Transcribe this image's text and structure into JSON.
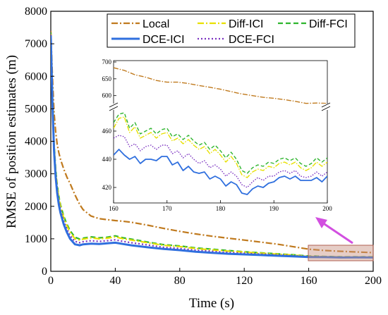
{
  "chart_data": {
    "type": "line",
    "title": "",
    "xlabel": "Time (s)",
    "ylabel": "RMSE of position estimates (m)",
    "xlim": [
      0,
      200
    ],
    "ylim": [
      0,
      8000
    ],
    "x_ticks": [
      "0",
      "40",
      "80",
      "120",
      "160",
      "200"
    ],
    "y_ticks": [
      "0",
      "1000",
      "2000",
      "3000",
      "4000",
      "5000",
      "6000",
      "7000",
      "8000"
    ],
    "legend_position": "top-right",
    "series": [
      {
        "name": "Local",
        "color": "#c07a1e",
        "dash": "dash-dot",
        "x": [
          0,
          1,
          2,
          3,
          4,
          5,
          6,
          8,
          10,
          12,
          15,
          18,
          20,
          25,
          30,
          35,
          40,
          45,
          50,
          60,
          70,
          80,
          90,
          100,
          110,
          120,
          130,
          140,
          150,
          160,
          170,
          180,
          190,
          200
        ],
        "y": [
          7400,
          6000,
          4900,
          4300,
          3900,
          3650,
          3450,
          3150,
          2900,
          2700,
          2350,
          2050,
          1900,
          1700,
          1620,
          1590,
          1560,
          1540,
          1510,
          1420,
          1320,
          1230,
          1150,
          1080,
          1020,
          960,
          900,
          840,
          760,
          680,
          640,
          615,
          595,
          575
        ]
      },
      {
        "name": "Diff-ICI",
        "color": "#e8e000",
        "dash": "dash-dot",
        "x": [
          0,
          1,
          2,
          3,
          4,
          5,
          6,
          8,
          10,
          12,
          15,
          18,
          20,
          25,
          30,
          35,
          40,
          45,
          50,
          60,
          70,
          80,
          90,
          100,
          110,
          120,
          130,
          140,
          150,
          160,
          170,
          180,
          190,
          200
        ],
        "y": [
          7300,
          5400,
          3900,
          3100,
          2600,
          2250,
          2000,
          1650,
          1400,
          1200,
          1000,
          960,
          990,
          1030,
          1000,
          1020,
          1060,
          1000,
          960,
          880,
          800,
          760,
          700,
          660,
          620,
          590,
          560,
          530,
          500,
          460,
          450,
          440,
          440,
          440
        ]
      },
      {
        "name": "Diff-FCI",
        "color": "#2fb52f",
        "dash": "dash",
        "x": [
          0,
          1,
          2,
          3,
          4,
          5,
          6,
          8,
          10,
          12,
          15,
          18,
          20,
          25,
          30,
          35,
          40,
          45,
          50,
          60,
          70,
          80,
          90,
          100,
          110,
          120,
          130,
          140,
          150,
          160,
          170,
          180,
          190,
          200
        ],
        "y": [
          7350,
          5450,
          3950,
          3150,
          2650,
          2300,
          2050,
          1700,
          1450,
          1250,
          1050,
          990,
          1020,
          1060,
          1030,
          1050,
          1090,
          1030,
          990,
          900,
          820,
          780,
          720,
          680,
          640,
          600,
          570,
          540,
          510,
          470,
          455,
          445,
          445,
          445
        ]
      },
      {
        "name": "DCE-ICI",
        "color": "#2f6fde",
        "dash": "solid",
        "x": [
          0,
          1,
          2,
          3,
          4,
          5,
          6,
          8,
          10,
          12,
          15,
          18,
          20,
          25,
          30,
          35,
          40,
          45,
          50,
          60,
          70,
          80,
          90,
          100,
          110,
          120,
          130,
          140,
          150,
          160,
          170,
          180,
          190,
          200
        ],
        "y": [
          7250,
          5200,
          3700,
          2900,
          2400,
          2050,
          1800,
          1450,
          1200,
          1000,
          830,
          800,
          830,
          850,
          840,
          860,
          880,
          840,
          800,
          740,
          690,
          650,
          600,
          570,
          540,
          520,
          500,
          480,
          460,
          440,
          435,
          425,
          428,
          425
        ]
      },
      {
        "name": "DCE-FCI",
        "color": "#7a30c0",
        "dash": "dot",
        "x": [
          0,
          1,
          2,
          3,
          4,
          5,
          6,
          8,
          10,
          12,
          15,
          18,
          20,
          25,
          30,
          35,
          40,
          45,
          50,
          60,
          70,
          80,
          90,
          100,
          110,
          120,
          130,
          140,
          150,
          160,
          170,
          180,
          190,
          200
        ],
        "y": [
          7280,
          5300,
          3800,
          3000,
          2500,
          2150,
          1900,
          1550,
          1300,
          1100,
          920,
          880,
          910,
          940,
          920,
          940,
          970,
          920,
          880,
          810,
          740,
          700,
          650,
          615,
          580,
          555,
          530,
          505,
          480,
          450,
          445,
          432,
          432,
          432
        ]
      }
    ],
    "inset": {
      "xlim": [
        160,
        200
      ],
      "x_ticks": [
        "160",
        "170",
        "180",
        "190",
        "200"
      ],
      "y_ticks_upper": [
        "600",
        "650",
        "700"
      ],
      "y_ticks_lower": [
        "420",
        "440",
        "460"
      ],
      "upper_range": [
        570,
        700
      ],
      "lower_range": [
        410,
        475
      ],
      "series": [
        {
          "name": "Local",
          "x": [
            160,
            162,
            164,
            166,
            168,
            170,
            172,
            174,
            176,
            178,
            180,
            182,
            184,
            186,
            188,
            190,
            192,
            194,
            196,
            198,
            200
          ],
          "y": [
            683,
            675,
            662,
            655,
            645,
            640,
            640,
            636,
            630,
            625,
            619,
            612,
            605,
            600,
            595,
            592,
            588,
            583,
            577,
            578,
            577
          ]
        },
        {
          "name": "Diff-FCI",
          "x": [
            160,
            161,
            162,
            163,
            164,
            165,
            166,
            167,
            168,
            169,
            170,
            171,
            172,
            173,
            174,
            175,
            176,
            177,
            178,
            179,
            180,
            181,
            182,
            183,
            184,
            185,
            186,
            187,
            188,
            189,
            190,
            191,
            192,
            193,
            194,
            195,
            196,
            197,
            198,
            199,
            200
          ],
          "y": [
            466,
            472,
            473,
            462,
            466,
            458,
            460,
            462,
            458,
            461,
            462,
            456,
            458,
            454,
            457,
            453,
            450,
            452,
            447,
            450,
            446,
            441,
            445,
            440,
            432,
            430,
            434,
            436,
            435,
            438,
            437,
            440,
            441,
            439,
            441,
            437,
            435,
            437,
            441,
            438,
            441
          ]
        },
        {
          "name": "Diff-ICI",
          "x": [
            160,
            161,
            162,
            163,
            164,
            165,
            166,
            167,
            168,
            169,
            170,
            171,
            172,
            173,
            174,
            175,
            176,
            177,
            178,
            179,
            180,
            181,
            182,
            183,
            184,
            185,
            186,
            187,
            188,
            189,
            190,
            191,
            192,
            193,
            194,
            195,
            196,
            197,
            198,
            199,
            200
          ],
          "y": [
            462,
            469,
            470,
            459,
            463,
            455,
            457,
            459,
            455,
            458,
            459,
            453,
            455,
            451,
            454,
            450,
            447,
            449,
            444,
            447,
            443,
            438,
            442,
            437,
            429,
            427,
            431,
            433,
            432,
            435,
            434,
            437,
            438,
            436,
            438,
            434,
            432,
            434,
            438,
            435,
            438
          ]
        },
        {
          "name": "DCE-FCI",
          "x": [
            160,
            161,
            162,
            163,
            164,
            165,
            166,
            167,
            168,
            169,
            170,
            171,
            172,
            173,
            174,
            175,
            176,
            177,
            178,
            179,
            180,
            181,
            182,
            183,
            184,
            185,
            186,
            187,
            188,
            189,
            190,
            191,
            192,
            193,
            194,
            195,
            196,
            197,
            198,
            199,
            200
          ],
          "y": [
            455,
            457,
            456,
            449,
            451,
            446,
            449,
            450,
            447,
            450,
            450,
            444,
            446,
            441,
            444,
            440,
            437,
            439,
            434,
            436,
            433,
            428,
            431,
            428,
            422,
            420,
            424,
            427,
            425,
            428,
            428,
            431,
            432,
            430,
            432,
            428,
            427,
            428,
            431,
            428,
            431
          ]
        },
        {
          "name": "DCE-ICI",
          "x": [
            160,
            161,
            162,
            163,
            164,
            165,
            166,
            167,
            168,
            169,
            170,
            171,
            172,
            173,
            174,
            175,
            176,
            177,
            178,
            179,
            180,
            181,
            182,
            183,
            184,
            185,
            186,
            187,
            188,
            189,
            190,
            191,
            192,
            193,
            194,
            195,
            196,
            197,
            198,
            199,
            200
          ],
          "y": [
            443,
            447,
            443,
            440,
            442,
            437,
            440,
            440,
            439,
            442,
            442,
            436,
            438,
            432,
            435,
            431,
            430,
            431,
            426,
            428,
            426,
            421,
            424,
            422,
            416,
            415,
            419,
            421,
            420,
            423,
            424,
            427,
            428,
            426,
            428,
            425,
            425,
            425,
            427,
            424,
            428
          ]
        }
      ]
    }
  }
}
